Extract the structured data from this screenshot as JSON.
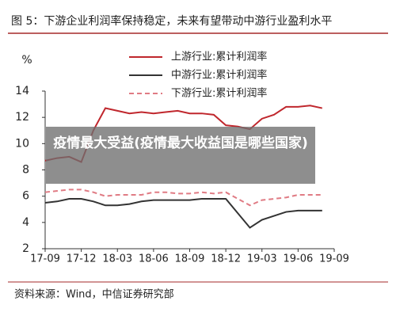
{
  "title": "图 5：下游企业利润率保持稳定，未来有望带动中游行业盈利水平",
  "banner": "疫情最大受益(疫情最大收益国是哪些国家)",
  "source": "资料来源：Wind，中信证券研究部",
  "chart_data": {
    "type": "line",
    "y_label": "%",
    "categories": [
      "17-09",
      null,
      null,
      "17-12",
      null,
      null,
      "18-03",
      null,
      null,
      "18-06",
      null,
      null,
      "18-09",
      null,
      null,
      "18-12",
      null,
      null,
      "19-03",
      null,
      null,
      "19-06",
      null,
      null,
      "19-09"
    ],
    "series": [
      {
        "name": "上游行业:累计利润率",
        "color": "#c0272d",
        "dash": false,
        "values": [
          8.7,
          8.9,
          9.0,
          8.6,
          11.0,
          12.7,
          12.5,
          12.3,
          12.4,
          12.3,
          12.4,
          12.5,
          12.3,
          12.3,
          12.2,
          11.4,
          11.3,
          11.1,
          11.9,
          12.2,
          12.8,
          12.8,
          12.9,
          12.7,
          null
        ]
      },
      {
        "name": "中游行业:累计利润率",
        "color": "#333333",
        "dash": false,
        "values": [
          5.5,
          5.6,
          5.8,
          5.8,
          5.6,
          5.3,
          5.3,
          5.4,
          5.6,
          5.7,
          5.7,
          5.7,
          5.7,
          5.8,
          5.8,
          5.8,
          4.7,
          3.6,
          4.2,
          4.5,
          4.8,
          4.9,
          4.9,
          4.9,
          null
        ]
      },
      {
        "name": "下游行业:累计利润率",
        "color": "#e07b84",
        "dash": true,
        "values": [
          6.3,
          6.4,
          6.5,
          6.5,
          6.3,
          6.0,
          6.1,
          6.1,
          6.1,
          6.3,
          6.3,
          6.2,
          6.2,
          6.3,
          6.2,
          6.3,
          5.8,
          5.3,
          5.7,
          5.8,
          5.9,
          6.1,
          6.1,
          6.1,
          null
        ]
      }
    ],
    "ylim": [
      2,
      14
    ],
    "yticks": [
      2,
      4,
      6,
      8,
      10,
      12,
      14
    ],
    "grid": false
  }
}
